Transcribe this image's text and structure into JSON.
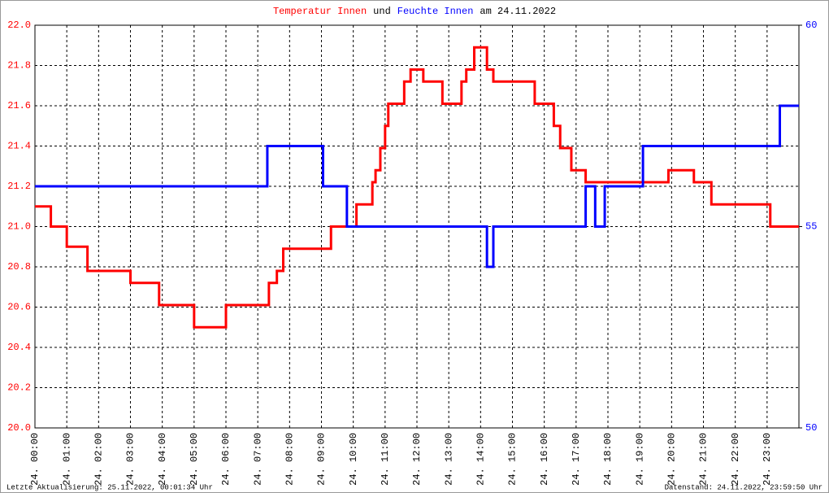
{
  "chart_data": {
    "type": "line",
    "title_parts": [
      {
        "text": "Temperatur Innen",
        "color": "#ff0000"
      },
      {
        "text": "und",
        "color": "#000000"
      },
      {
        "text": "Feuchte Innen",
        "color": "#0000ff"
      },
      {
        "text": "am 24.11.2022",
        "color": "#000000"
      }
    ],
    "xlim": [
      0,
      24
    ],
    "xticks": [
      {
        "value": 0,
        "label": "24. 00:00"
      },
      {
        "value": 1,
        "label": "24. 01:00"
      },
      {
        "value": 2,
        "label": "24. 02:00"
      },
      {
        "value": 3,
        "label": "24. 03:00"
      },
      {
        "value": 4,
        "label": "24. 04:00"
      },
      {
        "value": 5,
        "label": "24. 05:00"
      },
      {
        "value": 6,
        "label": "24. 06:00"
      },
      {
        "value": 7,
        "label": "24. 07:00"
      },
      {
        "value": 8,
        "label": "24. 08:00"
      },
      {
        "value": 9,
        "label": "24. 09:00"
      },
      {
        "value": 10,
        "label": "24. 10:00"
      },
      {
        "value": 11,
        "label": "24. 11:00"
      },
      {
        "value": 12,
        "label": "24. 12:00"
      },
      {
        "value": 13,
        "label": "24. 13:00"
      },
      {
        "value": 14,
        "label": "24. 14:00"
      },
      {
        "value": 15,
        "label": "24. 15:00"
      },
      {
        "value": 16,
        "label": "24. 16:00"
      },
      {
        "value": 17,
        "label": "24. 17:00"
      },
      {
        "value": 18,
        "label": "24. 18:00"
      },
      {
        "value": 19,
        "label": "24. 19:00"
      },
      {
        "value": 20,
        "label": "24. 20:00"
      },
      {
        "value": 21,
        "label": "24. 21:00"
      },
      {
        "value": 22,
        "label": "24. 22:00"
      },
      {
        "value": 23,
        "label": "24. 23:00"
      }
    ],
    "ylim": [
      20.0,
      22.0
    ],
    "yticks": [
      {
        "value": 20.0,
        "label": "20.0"
      },
      20.2,
      20.4,
      20.6,
      20.8,
      {
        "value": 21.0,
        "label": "21.0"
      },
      21.2,
      21.4,
      21.6,
      21.8,
      {
        "value": 22.0,
        "label": "22.0"
      }
    ],
    "y2lim": [
      50,
      60
    ],
    "y2ticks": [
      50,
      55,
      60
    ],
    "grid": true,
    "series": [
      {
        "name": "Temperatur Innen",
        "color": "#ff0000",
        "x": [
          0,
          0.5,
          0.5,
          1.0,
          1.0,
          1.65,
          1.65,
          3.0,
          3.0,
          3.9,
          3.9,
          5.0,
          5.0,
          6.0,
          6.0,
          7.35,
          7.35,
          7.6,
          7.6,
          7.8,
          7.8,
          9.3,
          9.3,
          10.1,
          10.1,
          10.6,
          10.6,
          10.7,
          10.7,
          10.85,
          10.85,
          11.0,
          11.0,
          11.1,
          11.1,
          11.6,
          11.6,
          11.8,
          11.8,
          12.2,
          12.2,
          12.8,
          12.8,
          13.4,
          13.4,
          13.55,
          13.55,
          13.8,
          13.8,
          14.2,
          14.2,
          14.4,
          14.4,
          15.7,
          15.7,
          16.3,
          16.3,
          16.5,
          16.5,
          16.85,
          16.85,
          17.3,
          17.3,
          19.9,
          19.9,
          20.7,
          20.7,
          21.25,
          21.25,
          23.1,
          23.1,
          24
        ],
        "values": [
          21.1,
          21.1,
          21.0,
          21.0,
          20.9,
          20.9,
          20.78,
          20.78,
          20.72,
          20.72,
          20.61,
          20.61,
          20.5,
          20.5,
          20.61,
          20.61,
          20.72,
          20.72,
          20.78,
          20.78,
          20.89,
          20.89,
          21.0,
          21.0,
          21.11,
          21.11,
          21.22,
          21.22,
          21.28,
          21.28,
          21.39,
          21.39,
          21.5,
          21.5,
          21.61,
          21.61,
          21.72,
          21.72,
          21.78,
          21.78,
          21.72,
          21.72,
          21.61,
          21.61,
          21.72,
          21.72,
          21.78,
          21.78,
          21.89,
          21.89,
          21.78,
          21.78,
          21.72,
          21.72,
          21.61,
          21.61,
          21.5,
          21.5,
          21.39,
          21.39,
          21.28,
          21.28,
          21.22,
          21.22,
          21.28,
          21.28,
          21.22,
          21.22,
          21.11,
          21.11,
          21.0,
          21.0
        ]
      },
      {
        "name": "Feuchte Innen",
        "color": "#0000ff",
        "axis": "y2",
        "x": [
          0,
          7.3,
          7.3,
          9.05,
          9.05,
          9.8,
          9.8,
          14.2,
          14.2,
          14.4,
          14.4,
          17.3,
          17.3,
          17.6,
          17.6,
          17.9,
          17.9,
          19.1,
          19.1,
          23.4,
          23.4,
          24
        ],
        "values": [
          56,
          56,
          57,
          57,
          56,
          56,
          55,
          55,
          54,
          54,
          55,
          55,
          56,
          56,
          55,
          55,
          56,
          56,
          57,
          57,
          58,
          58
        ]
      }
    ],
    "footer_left": "Letzte Aktualisierung: 25.11.2022, 00:01:34 Uhr",
    "footer_right": "Datenstand: 24.11.2022, 23:59:50 Uhr"
  }
}
